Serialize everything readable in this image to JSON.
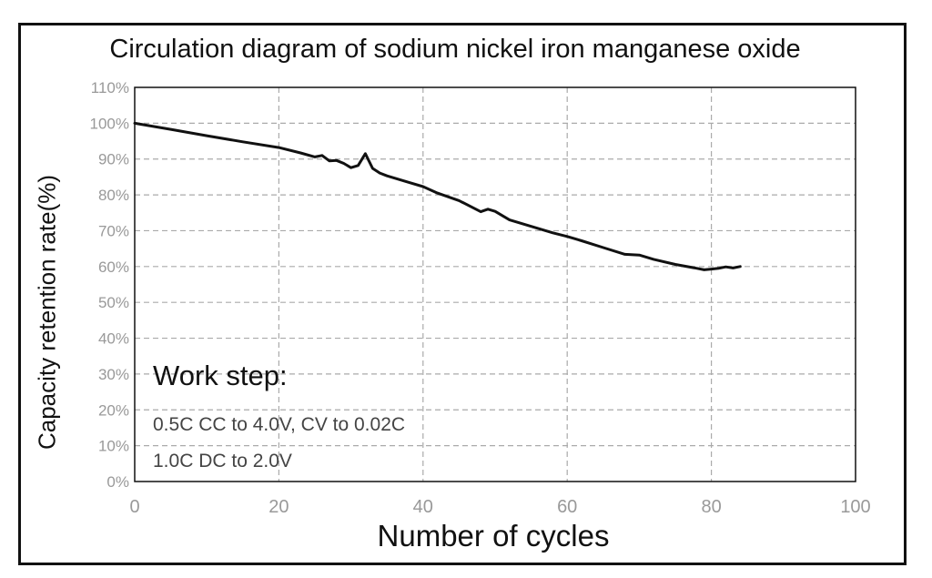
{
  "chart_data": {
    "type": "line",
    "title": "Circulation diagram of sodium nickel iron manganese oxide",
    "xlabel": "Number of cycles",
    "ylabel": "Capacity retention rate(%)",
    "xlim": [
      0,
      100
    ],
    "ylim": [
      0,
      110
    ],
    "x_ticks": [
      "0",
      "20",
      "40",
      "60",
      "80",
      "100"
    ],
    "y_ticks": [
      "0%",
      "10%",
      "20%",
      "30%",
      "40%",
      "50%",
      "60%",
      "70%",
      "80%",
      "90%",
      "100%",
      "110%"
    ],
    "grid": true,
    "series": [
      {
        "x": [
          0,
          5,
          10,
          15,
          20,
          23,
          25,
          26,
          27,
          28,
          29,
          30,
          31,
          32,
          33,
          34,
          35,
          38,
          40,
          42,
          45,
          48,
          49,
          50,
          52,
          55,
          58,
          60,
          62,
          65,
          68,
          70,
          72,
          75,
          78,
          79,
          80,
          81,
          82,
          83,
          84
        ],
        "y": [
          100,
          98.3,
          96.5,
          94.8,
          93.2,
          91.7,
          90.6,
          91,
          89.5,
          89.6,
          88.8,
          87.6,
          88.2,
          91.5,
          87.4,
          86.1,
          85.3,
          83.5,
          82.3,
          80.5,
          78.4,
          75.3,
          76,
          75.4,
          73,
          71.2,
          69.4,
          68.4,
          67.2,
          65.3,
          63.4,
          63.2,
          62,
          60.6,
          59.5,
          59.1,
          59.3,
          59.5,
          59.9,
          59.6,
          60
        ]
      }
    ],
    "annotations": {
      "work_step": "Work step:",
      "line_1": "0.5C CC to 4.0V, CV to 0.02C",
      "line_2": "1.0C DC to 2.0V"
    },
    "colors": {
      "line": "#111111",
      "grid": "#aaaaaa",
      "tick_label": "#999999"
    }
  }
}
